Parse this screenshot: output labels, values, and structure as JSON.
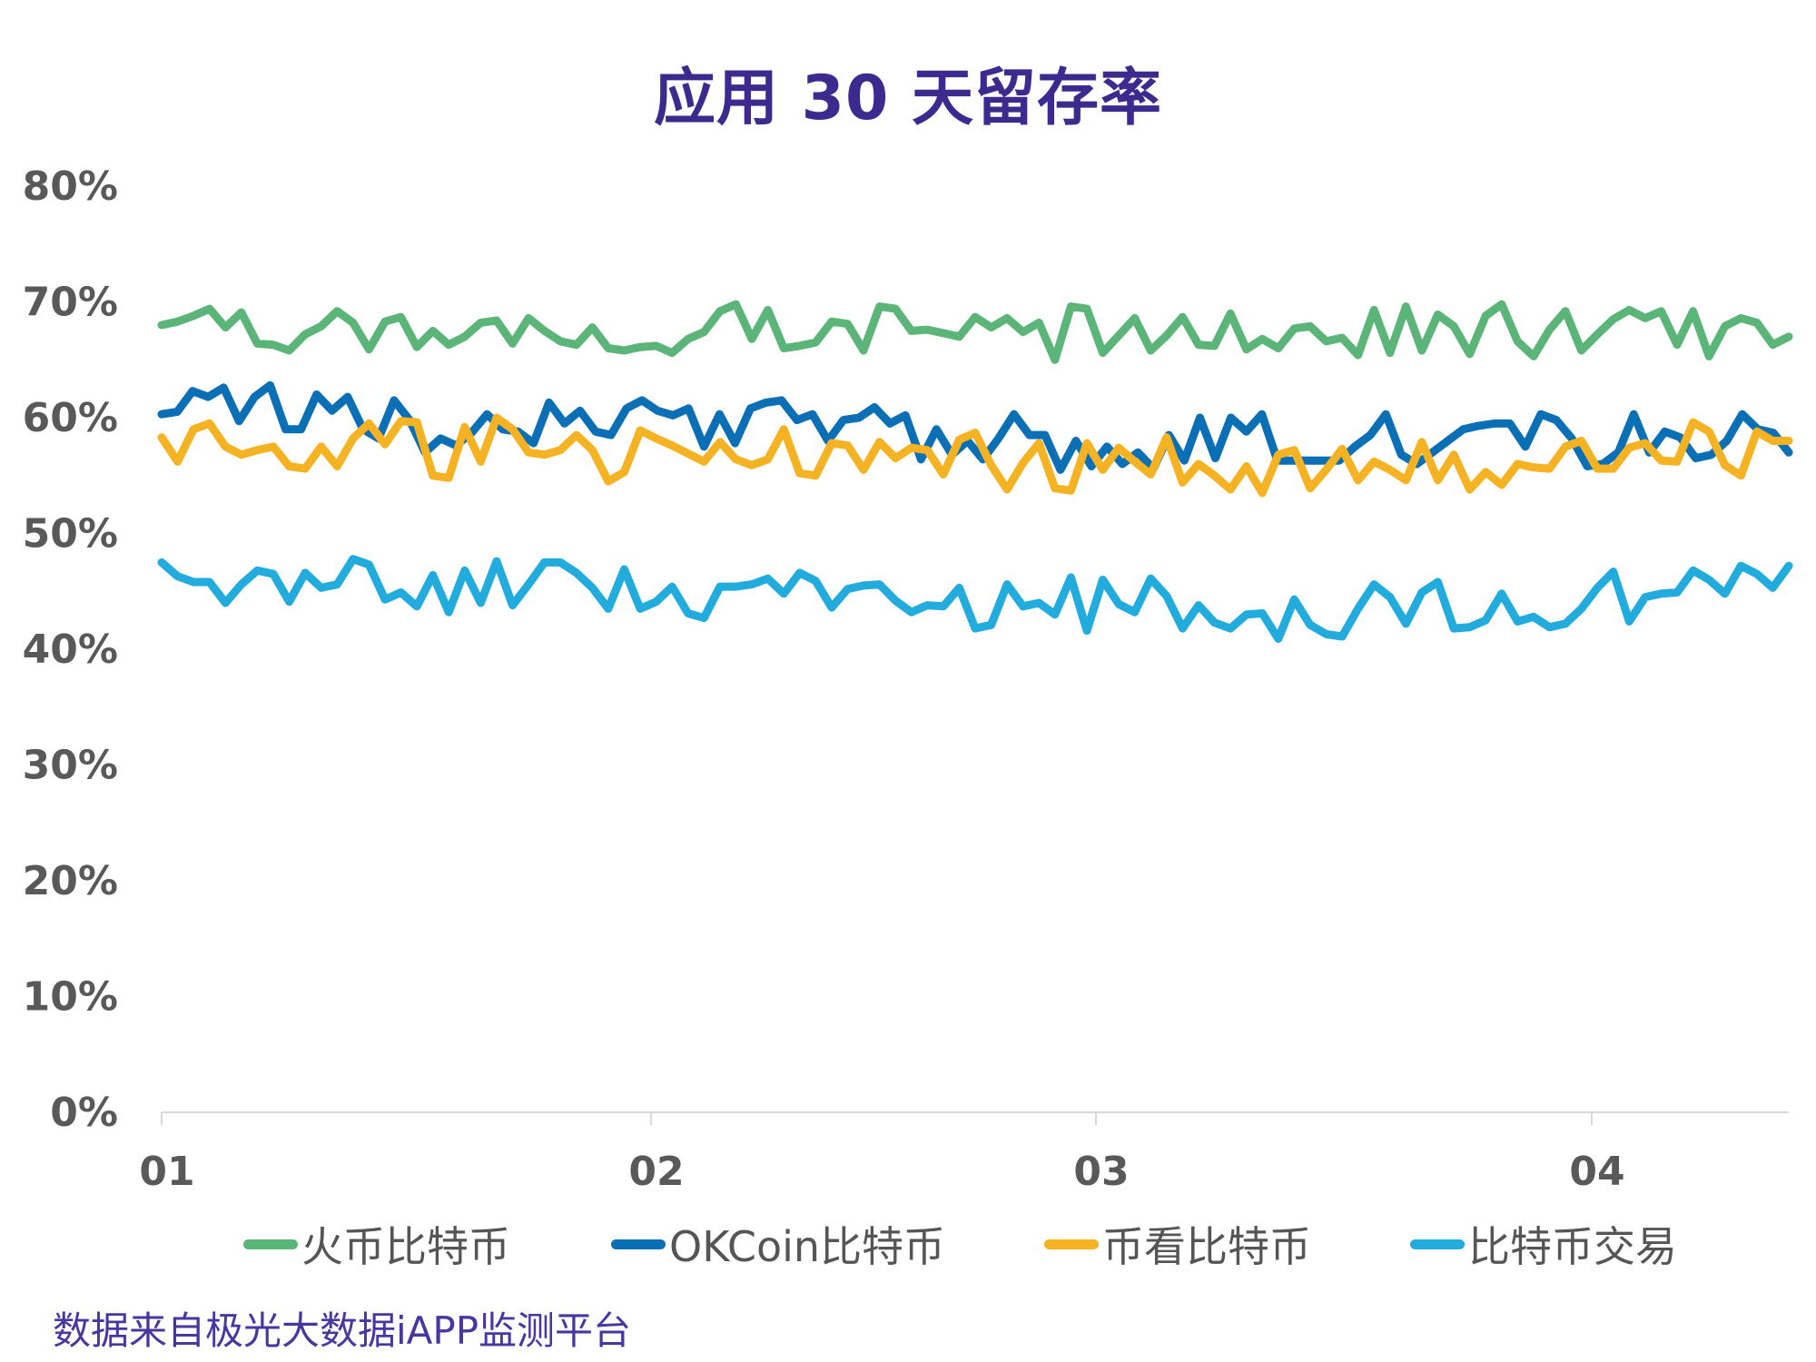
{
  "chart_data": {
    "type": "line",
    "title": "应用 30 天留存率",
    "source": "数据来自极光大数据iAPP监测平台",
    "ylim": [
      0,
      80
    ],
    "y_tick_labels": [
      "0%",
      "10%",
      "20%",
      "30%",
      "40%",
      "50%",
      "60%",
      "70%",
      "80%"
    ],
    "x_tick_labels": [
      "01",
      "02",
      "03",
      "04"
    ],
    "x_tick_positions": [
      0,
      38.5,
      73.5,
      112.5
    ],
    "x_range": [
      0,
      128
    ],
    "grid": false,
    "legend_position": "bottom",
    "series": [
      {
        "name": "火币比特币",
        "color": "#5bb578",
        "values": [
          68.0,
          68.3,
          68.8,
          69.4,
          67.8,
          69.1,
          66.4,
          66.3,
          65.8,
          67.2,
          67.9,
          69.2,
          68.2,
          65.9,
          68.3,
          68.7,
          66.1,
          67.5,
          66.3,
          67.0,
          68.2,
          68.4,
          66.4,
          68.6,
          67.5,
          66.6,
          66.3,
          67.8,
          66.0,
          65.8,
          66.1,
          66.2,
          65.6,
          66.8,
          67.4,
          69.2,
          69.8,
          66.8,
          69.3,
          66.0,
          66.2,
          66.5,
          68.3,
          68.1,
          65.8,
          69.6,
          69.4,
          67.5,
          67.6,
          67.3,
          67.0,
          68.7,
          67.8,
          68.6,
          67.4,
          68.2,
          65.0,
          69.6,
          69.4,
          65.6,
          67.1,
          68.6,
          65.8,
          67.1,
          68.7,
          66.3,
          66.2,
          69.0,
          65.9,
          66.8,
          66.0,
          67.7,
          67.9,
          66.6,
          66.9,
          65.4,
          69.3,
          65.6,
          69.6,
          65.8,
          68.9,
          67.9,
          65.5,
          68.8,
          69.8,
          66.6,
          65.3,
          67.6,
          69.2,
          65.8,
          67.2,
          68.5,
          69.3,
          68.6,
          69.2,
          66.3,
          69.2,
          65.3,
          67.9,
          68.6,
          68.2,
          66.3,
          67.0
        ]
      },
      {
        "name": "OKCoin比特币",
        "color": "#0b6fb5",
        "values": [
          60.3,
          60.5,
          62.3,
          61.8,
          62.6,
          59.7,
          61.8,
          62.8,
          59.0,
          59.0,
          62.0,
          60.6,
          61.8,
          59.0,
          58.2,
          61.5,
          59.8,
          57.0,
          58.2,
          57.6,
          58.7,
          60.3,
          59.0,
          58.8,
          57.8,
          61.3,
          59.5,
          60.6,
          58.8,
          58.5,
          60.8,
          61.5,
          60.6,
          60.2,
          60.8,
          57.5,
          60.3,
          57.8,
          60.8,
          61.3,
          61.5,
          59.8,
          60.3,
          58.0,
          59.8,
          60.0,
          60.9,
          59.5,
          60.2,
          56.4,
          59.0,
          56.8,
          58.0,
          56.4,
          58.2,
          60.3,
          58.5,
          58.5,
          55.5,
          58.0,
          55.8,
          57.5,
          56.0,
          57.0,
          55.6,
          58.5,
          56.3,
          60.0,
          56.5,
          60.0,
          58.8,
          60.3,
          56.3,
          56.3,
          56.3,
          56.3,
          56.3,
          57.5,
          58.5,
          60.3,
          56.8,
          56.0,
          57.0,
          58.0,
          59.0,
          59.3,
          59.5,
          59.5,
          57.5,
          60.3,
          59.8,
          58.2,
          55.8,
          56.0,
          57.0,
          60.3,
          57.0,
          58.8,
          58.3,
          56.5,
          56.8,
          58.0,
          60.3,
          59.0,
          58.7,
          57.0
        ]
      },
      {
        "name": "币看比特币",
        "color": "#f5b323",
        "values": [
          58.3,
          56.2,
          59.0,
          59.5,
          57.5,
          56.8,
          57.2,
          57.5,
          55.8,
          55.6,
          57.5,
          55.8,
          58.2,
          59.5,
          57.7,
          59.7,
          59.6,
          55.0,
          54.8,
          59.2,
          56.2,
          60.0,
          59.0,
          57.0,
          56.8,
          57.2,
          58.5,
          57.2,
          54.5,
          55.3,
          58.9,
          58.2,
          57.6,
          56.9,
          56.2,
          57.9,
          56.4,
          55.9,
          56.4,
          59.0,
          55.2,
          55.0,
          57.8,
          57.6,
          55.5,
          57.9,
          56.5,
          57.4,
          57.2,
          55.1,
          58.1,
          58.7,
          55.9,
          53.8,
          56.1,
          57.8,
          53.9,
          53.7,
          57.8,
          55.5,
          57.4,
          56.2,
          55.1,
          58.3,
          54.4,
          56.0,
          55.0,
          53.8,
          55.8,
          53.5,
          56.8,
          57.2,
          53.9,
          55.5,
          57.3,
          54.6,
          56.2,
          55.5,
          54.6,
          57.9,
          54.6,
          56.8,
          53.8,
          55.3,
          54.2,
          56.0,
          55.7,
          55.6,
          57.5,
          58.0,
          55.6,
          55.6,
          57.4,
          57.8,
          56.3,
          56.2,
          59.6,
          58.8,
          55.9,
          55.0,
          58.8,
          58.0,
          58.0
        ]
      },
      {
        "name": "比特币交易",
        "color": "#22abdd",
        "values": [
          47.5,
          46.3,
          45.8,
          45.8,
          44.0,
          45.6,
          46.8,
          46.5,
          44.1,
          46.6,
          45.3,
          45.6,
          47.8,
          47.3,
          44.3,
          44.9,
          43.7,
          46.4,
          43.2,
          46.8,
          44.0,
          47.6,
          43.8,
          45.6,
          47.5,
          47.5,
          46.6,
          45.3,
          43.5,
          46.9,
          43.5,
          44.1,
          45.4,
          43.1,
          42.7,
          45.4,
          45.4,
          45.6,
          46.1,
          44.8,
          46.6,
          45.9,
          43.6,
          45.2,
          45.5,
          45.6,
          44.2,
          43.2,
          43.8,
          43.7,
          45.3,
          41.8,
          42.1,
          45.6,
          43.7,
          44.0,
          43.0,
          46.2,
          41.6,
          46.0,
          43.9,
          43.2,
          46.1,
          44.6,
          41.8,
          43.8,
          42.3,
          41.8,
          43.0,
          43.1,
          40.9,
          44.3,
          42.1,
          41.3,
          41.1,
          43.5,
          45.6,
          44.5,
          42.2,
          44.9,
          45.8,
          41.8,
          41.9,
          42.5,
          44.8,
          42.4,
          42.8,
          41.9,
          42.2,
          43.5,
          45.3,
          46.7,
          42.4,
          44.5,
          44.8,
          44.9,
          46.8,
          46.0,
          44.8,
          47.2,
          46.5,
          45.3,
          47.2
        ]
      }
    ]
  }
}
